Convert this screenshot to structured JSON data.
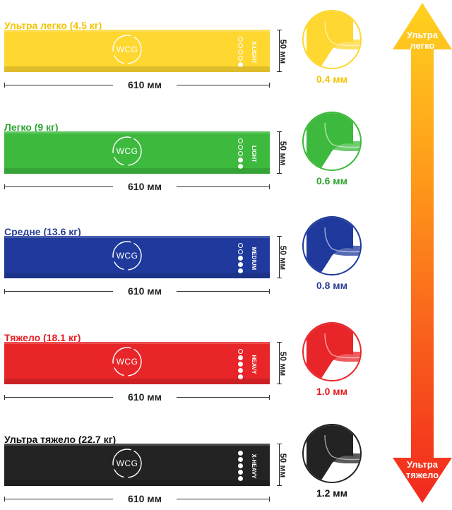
{
  "bands": [
    {
      "title": "Ультра легко (4.5 кг)",
      "color": "#fed730",
      "title_color": "#f2c400",
      "thickness_color": "#f2c400",
      "logo": "WCG",
      "strength": "X-LIGHT",
      "level": 1,
      "width": "50 мм",
      "length": "610 мм",
      "thickness": "0.4 мм",
      "edge_icon": "yellow-band-edge-icon"
    },
    {
      "title": "Легко (9 кг)",
      "color": "#3dba3d",
      "title_color": "#2fa52f",
      "thickness_color": "#2fa52f",
      "logo": "WCG",
      "strength": "LIGHT",
      "level": 2,
      "width": "50 мм",
      "length": "610 мм",
      "thickness": "0.6 мм",
      "edge_icon": "green-band-edge-icon"
    },
    {
      "title": "Средне (13.6 кг)",
      "color": "#1f3a9c",
      "title_color": "#2a3f96",
      "thickness_color": "#2a3f96",
      "logo": "WCG",
      "strength": "MEDIUM",
      "level": 3,
      "width": "50 мм",
      "length": "610 мм",
      "thickness": "0.8 мм",
      "edge_icon": "blue-band-edge-icon"
    },
    {
      "title": "Тяжело (18.1 кг)",
      "color": "#e8262a",
      "title_color": "#e21e23",
      "thickness_color": "#e21e23",
      "logo": "WCG",
      "strength": "HEAVY",
      "level": 4,
      "width": "50 мм",
      "length": "610 мм",
      "thickness": "1.0 мм",
      "edge_icon": "red-band-edge-icon"
    },
    {
      "title": "Ультра тяжело (22.7 кг)",
      "color": "#232323",
      "title_color": "#111111",
      "thickness_color": "#111111",
      "logo": "WCG",
      "strength": "X-HEAVY",
      "level": 5,
      "width": "50 мм",
      "length": "610 мм",
      "thickness": "1.2 мм",
      "edge_icon": "black-band-edge-icon"
    }
  ],
  "scale": {
    "top_label": "Ультра\nлегко",
    "bottom_label": "Ультра\nтяжело",
    "top_color": "#ffd21f",
    "bottom_color": "#f2281e"
  }
}
